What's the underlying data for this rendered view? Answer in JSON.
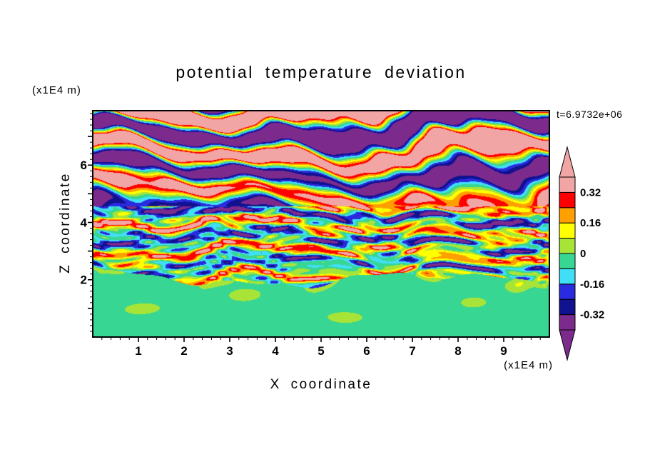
{
  "chart_data": {
    "type": "heatmap",
    "title": "potential temperature deviation",
    "xlabel": "X coordinate",
    "ylabel": "Z coordinate",
    "x_units": "(x1E4 m)",
    "z_units": "(x1E4 m)",
    "timestamp": "t=6.9732e+06",
    "xlim": [
      0,
      10
    ],
    "zlim": [
      0,
      7.9
    ],
    "x_ticks": [
      1,
      2,
      3,
      4,
      5,
      6,
      7,
      8,
      9
    ],
    "z_ticks": [
      2,
      4,
      6
    ],
    "grid": false,
    "legend_position": "right-colorbar",
    "colorbar": {
      "levels": [
        -0.4,
        -0.32,
        -0.24,
        -0.16,
        -0.08,
        0,
        0.08,
        0.16,
        0.24,
        0.32,
        0.4
      ],
      "label_values": [
        0.32,
        0.16,
        0,
        -0.16,
        -0.32
      ],
      "tick_labels": [
        "0.32",
        "0.16",
        "0",
        "-0.16",
        "-0.32"
      ],
      "band_colors_low_to_high": [
        "#7D2A8D",
        "#10128F",
        "#2A2ADF",
        "#41DFF5",
        "#37D692",
        "#A8E437",
        "#FFFF00",
        "#FF9F00",
        "#FF0000",
        "#F2A5A5"
      ],
      "under_color": "#7D2A8D",
      "over_color": "#F2A5A5"
    },
    "field_params": {
      "boundary_base": 2.0,
      "top_zone": 4.55,
      "blobs": [
        {
          "x": 1.1,
          "z": 1.0,
          "a": 0.09,
          "sx": 0.18,
          "sz": 0.05
        },
        {
          "x": 3.3,
          "z": 1.45,
          "a": 0.12,
          "sx": 0.1,
          "sz": 0.04
        },
        {
          "x": 5.6,
          "z": 0.7,
          "a": 0.1,
          "sx": 0.25,
          "sz": 0.06
        },
        {
          "x": 8.3,
          "z": 1.2,
          "a": 0.11,
          "sx": 0.12,
          "sz": 0.05
        },
        {
          "x": 9.3,
          "z": 1.8,
          "a": 0.14,
          "sx": 0.08,
          "sz": 0.06
        }
      ]
    }
  }
}
